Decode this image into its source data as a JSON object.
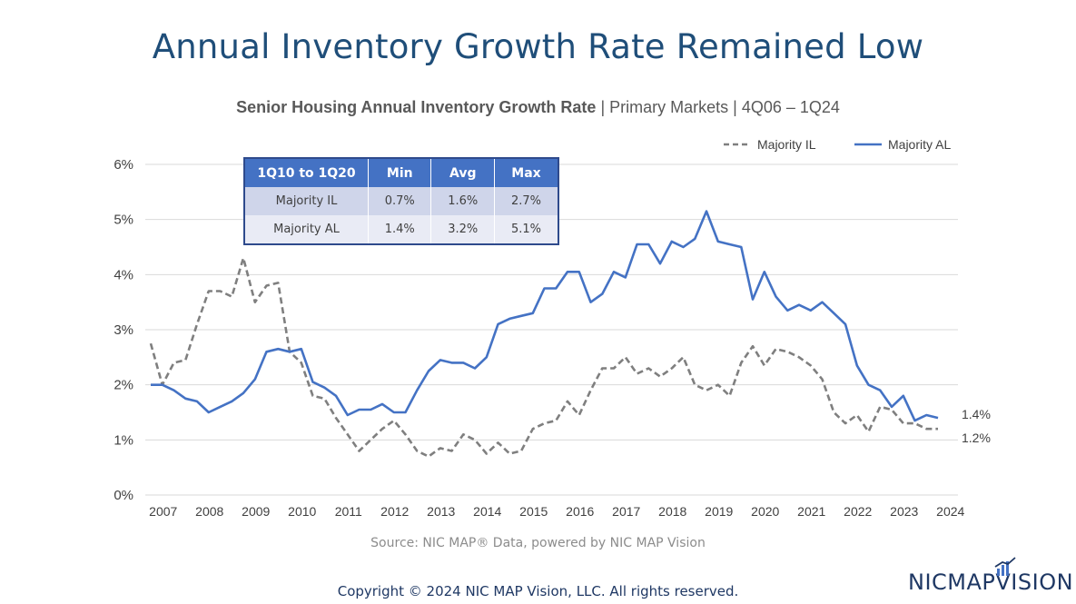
{
  "title": "Annual Inventory Growth Rate Remained Low",
  "subtitle_bold": "Senior Housing Annual Inventory Growth Rate",
  "subtitle_rest": " | Primary Markets | 4Q06 – 1Q24",
  "source": "Source: NIC MAP® Data, powered by NIC MAP Vision",
  "copyright": "Copyright © 2024 NIC MAP Vision, LLC. All rights reserved.",
  "logo_text": "NICMAPVISION",
  "colors": {
    "il": "#7f7f7f",
    "al": "#4472c4",
    "title": "#1f4e79",
    "table_header": "#4472c4"
  },
  "stats_table": {
    "headers": [
      "1Q10 to 1Q20",
      "Min",
      "Avg",
      "Max"
    ],
    "rows": [
      [
        "Majority IL",
        "0.7%",
        "1.6%",
        "2.7%"
      ],
      [
        "Majority AL",
        "1.4%",
        "3.2%",
        "5.1%"
      ]
    ]
  },
  "chart_data": {
    "type": "line",
    "title": "Senior Housing Annual Inventory Growth Rate | Primary Markets | 4Q06 – 1Q24",
    "x_start": "4Q06",
    "x_end": "1Q24",
    "x_tick_labels": [
      "2007",
      "2008",
      "2009",
      "2010",
      "2011",
      "2012",
      "2013",
      "2014",
      "2015",
      "2016",
      "2017",
      "2018",
      "2019",
      "2020",
      "2021",
      "2022",
      "2023",
      "2024"
    ],
    "y_tick_labels": [
      "0%",
      "1%",
      "2%",
      "3%",
      "4%",
      "5%",
      "6%"
    ],
    "ylim": [
      0,
      6
    ],
    "y_unit": "%",
    "grid": true,
    "legend_position": "top-right",
    "end_labels": [
      "1.4%",
      "1.2%"
    ],
    "series": [
      {
        "name": "Majority IL",
        "style": "dashed",
        "values": [
          2.75,
          2.0,
          2.4,
          2.45,
          3.1,
          3.7,
          3.7,
          3.6,
          4.3,
          3.5,
          3.8,
          3.85,
          2.6,
          2.4,
          1.8,
          1.75,
          1.4,
          1.1,
          0.8,
          1.0,
          1.2,
          1.35,
          1.1,
          0.8,
          0.7,
          0.85,
          0.8,
          1.1,
          1.0,
          0.75,
          0.95,
          0.75,
          0.8,
          1.2,
          1.3,
          1.35,
          1.7,
          1.45,
          1.9,
          2.3,
          2.3,
          2.5,
          2.2,
          2.3,
          2.15,
          2.3,
          2.5,
          2.0,
          1.9,
          2.0,
          1.8,
          2.4,
          2.7,
          2.35,
          2.65,
          2.6,
          2.5,
          2.35,
          2.1,
          1.5,
          1.3,
          1.45,
          1.15,
          1.6,
          1.55,
          1.3,
          1.3,
          1.2,
          1.2
        ]
      },
      {
        "name": "Majority AL",
        "style": "solid",
        "values": [
          2.0,
          2.0,
          1.9,
          1.75,
          1.7,
          1.5,
          1.6,
          1.7,
          1.85,
          2.1,
          2.6,
          2.65,
          2.6,
          2.65,
          2.05,
          1.95,
          1.8,
          1.45,
          1.55,
          1.55,
          1.65,
          1.5,
          1.5,
          1.9,
          2.25,
          2.45,
          2.4,
          2.4,
          2.3,
          2.5,
          3.1,
          3.2,
          3.25,
          3.3,
          3.75,
          3.75,
          4.05,
          4.05,
          3.5,
          3.65,
          4.05,
          3.95,
          4.55,
          4.55,
          4.2,
          4.6,
          4.5,
          4.65,
          5.15,
          4.6,
          4.55,
          4.5,
          3.55,
          4.05,
          3.6,
          3.35,
          3.45,
          3.35,
          3.5,
          3.3,
          3.1,
          2.35,
          2.0,
          1.9,
          1.6,
          1.8,
          1.35,
          1.45,
          1.4
        ]
      }
    ]
  }
}
